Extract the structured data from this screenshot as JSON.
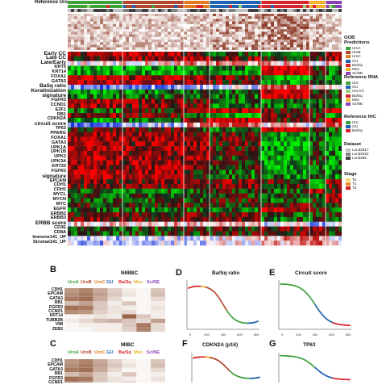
{
  "panel_a": {
    "header_label": "Reference Uro",
    "row_labels": [
      {
        "text": "Early CC",
        "y": 0,
        "big": true
      },
      {
        "text": "Late CC",
        "y": 1,
        "big": true
      },
      {
        "text": "Late/Early",
        "y": 2,
        "big": true
      },
      {
        "text": "KRT5",
        "y": 3
      },
      {
        "text": "KRT14",
        "y": 4
      },
      {
        "text": "FOXA1",
        "y": 5
      },
      {
        "text": "GATA3",
        "y": 6
      },
      {
        "text": "BaSq ratio",
        "y": 7,
        "big": true
      },
      {
        "text": "Keratinization",
        "y": 8,
        "big": true
      },
      {
        "text": "signature",
        "y": 9,
        "big": true
      },
      {
        "text": "FGFR3",
        "y": 10
      },
      {
        "text": "CCND1",
        "y": 11
      },
      {
        "text": "E2F1",
        "y": 12
      },
      {
        "text": "RB1",
        "y": 13
      },
      {
        "text": "CDKN2A",
        "y": 14
      },
      {
        "text": "circuit score",
        "y": 15,
        "big": true
      },
      {
        "text": "TP63",
        "y": 16
      },
      {
        "text": "PPARG",
        "y": 17
      },
      {
        "text": "FOXA1",
        "y": 18
      },
      {
        "text": "GATA3",
        "y": 19
      },
      {
        "text": "UPK1A",
        "y": 20
      },
      {
        "text": "UPK1B",
        "y": 21
      },
      {
        "text": "UPK2",
        "y": 22
      },
      {
        "text": "UPK3A",
        "y": 23
      },
      {
        "text": "KRT20",
        "y": 24
      },
      {
        "text": "FGFR3",
        "y": 25
      },
      {
        "text": "signature",
        "y": 26,
        "big": true
      },
      {
        "text": "EPCAM",
        "y": 27
      },
      {
        "text": "CDH1",
        "y": 28
      },
      {
        "text": "CDH2",
        "y": 29
      },
      {
        "text": "MYCL",
        "y": 30
      },
      {
        "text": "MYCN",
        "y": 31
      },
      {
        "text": "MYC",
        "y": 32
      },
      {
        "text": "EGFR",
        "y": 33
      },
      {
        "text": "ERBB2",
        "y": 34
      },
      {
        "text": "ERBB3",
        "y": 35
      },
      {
        "text": "ERBB score",
        "y": 36,
        "big": true
      },
      {
        "text": "CD3E",
        "y": 37
      },
      {
        "text": "CD8A",
        "y": 38
      },
      {
        "text": "Immune141_UP",
        "y": 39
      },
      {
        "text": "Stromal141_UP",
        "y": 40
      }
    ],
    "legend": {
      "oob": {
        "title": "OOB\nPredictions",
        "items": [
          {
            "label": "UroA",
            "color": "#3fa13a"
          },
          {
            "label": "UroB",
            "color": "#b2462c"
          },
          {
            "label": "UroC",
            "color": "#e07b1f"
          },
          {
            "label": "GU",
            "color": "#1e62b0"
          },
          {
            "label": "Ba/Sq",
            "color": "#d6262b"
          },
          {
            "label": "Mes",
            "color": "#f0b32a"
          },
          {
            "label": "Sc/NE",
            "color": "#8c3fb8"
          }
        ]
      },
      "reference_rna": {
        "title": "Reference RNA",
        "items": [
          {
            "label": "Uro",
            "color": "#3fa13a"
          },
          {
            "label": "GU",
            "color": "#1e62b0"
          },
          {
            "label": "Uro-Inf",
            "color": "#9bd07f"
          },
          {
            "label": "Ba/Sq",
            "color": "#d6262b"
          },
          {
            "label": "Mes",
            "color": "#f0b32a"
          },
          {
            "label": "Sc/NE",
            "color": "#8c3fb8"
          }
        ]
      },
      "reference_ihc": {
        "title": "Reference IHC",
        "items": [
          {
            "label": "Uro",
            "color": "#3fa13a"
          },
          {
            "label": "GU",
            "color": "#1e62b0"
          },
          {
            "label": "Ba/Sq",
            "color": "#d6262b"
          }
        ]
      },
      "dataset": {
        "title": "Dataset",
        "items": [
          {
            "label": "Lund2017",
            "color": "#bfbfbf"
          },
          {
            "label": "Lund2022",
            "color": "#808080"
          },
          {
            "label": "Lund265",
            "color": "#404040"
          }
        ]
      },
      "stage": {
        "title": "Stage",
        "items": [
          {
            "label": "Ta",
            "color": "#f5d76e"
          },
          {
            "label": "T1",
            "color": "#f08a24"
          },
          {
            "label": "T2",
            "color": "#d7191c"
          }
        ]
      }
    }
  },
  "panel_b": {
    "letter": "B",
    "title": "NMIBC",
    "columns": [
      {
        "label": "UroA",
        "color": "#3fa13a"
      },
      {
        "label": "UroB",
        "color": "#b2462c"
      },
      {
        "label": "UroC",
        "color": "#e07b1f"
      },
      {
        "label": "GU",
        "color": "#1e62b0"
      },
      {
        "label": "Ba/Sq",
        "color": "#d6262b"
      },
      {
        "label": "Mes",
        "color": "#f0b32a"
      },
      {
        "label": "Sc/NE",
        "color": "#8c3fb8"
      }
    ],
    "genes": [
      "CDH1",
      "EPCAM",
      "GATA3",
      "RB1",
      "FGFR3",
      "CCND1",
      "KRT14",
      "TUBB2B",
      "VIM",
      "ZEB2"
    ]
  },
  "panel_c": {
    "letter": "C",
    "title": "MIBC",
    "columns": [
      {
        "label": "UroA",
        "color": "#3fa13a"
      },
      {
        "label": "UroB",
        "color": "#b2462c"
      },
      {
        "label": "UroC",
        "color": "#e07b1f"
      },
      {
        "label": "GU",
        "color": "#1e62b0"
      },
      {
        "label": "Ba/Sq",
        "color": "#d6262b"
      },
      {
        "label": "Mes",
        "color": "#f0b32a"
      },
      {
        "label": "Sc/NE",
        "color": "#8c3fb8"
      }
    ],
    "genes": [
      "CDH1",
      "EPCAM",
      "GATA3",
      "RB1",
      "FGFR3",
      "CCND1"
    ]
  },
  "chart_data": [
    {
      "type": "scatter",
      "panel": "D",
      "title": "Ba/Sq ratio",
      "x_ticks": [
        "0",
        "200",
        "400",
        "600",
        "800"
      ],
      "description_color": "sorted values colored by subtype"
    },
    {
      "type": "scatter",
      "panel": "E",
      "title": "Circuit score",
      "x_ticks": [
        "0",
        "200",
        "400",
        "600",
        "800"
      ]
    },
    {
      "type": "scatter",
      "panel": "F",
      "title": "CDKN2A (p16)"
    },
    {
      "type": "scatter",
      "panel": "G",
      "title": "TP63"
    }
  ],
  "panels": {
    "d": {
      "letter": "D",
      "title": "Ba/Sq ratio"
    },
    "e": {
      "letter": "E",
      "title": "Circuit score"
    },
    "f": {
      "letter": "F",
      "title": "CDKN2A (p16)"
    },
    "g": {
      "letter": "G",
      "title": "TP63"
    }
  }
}
